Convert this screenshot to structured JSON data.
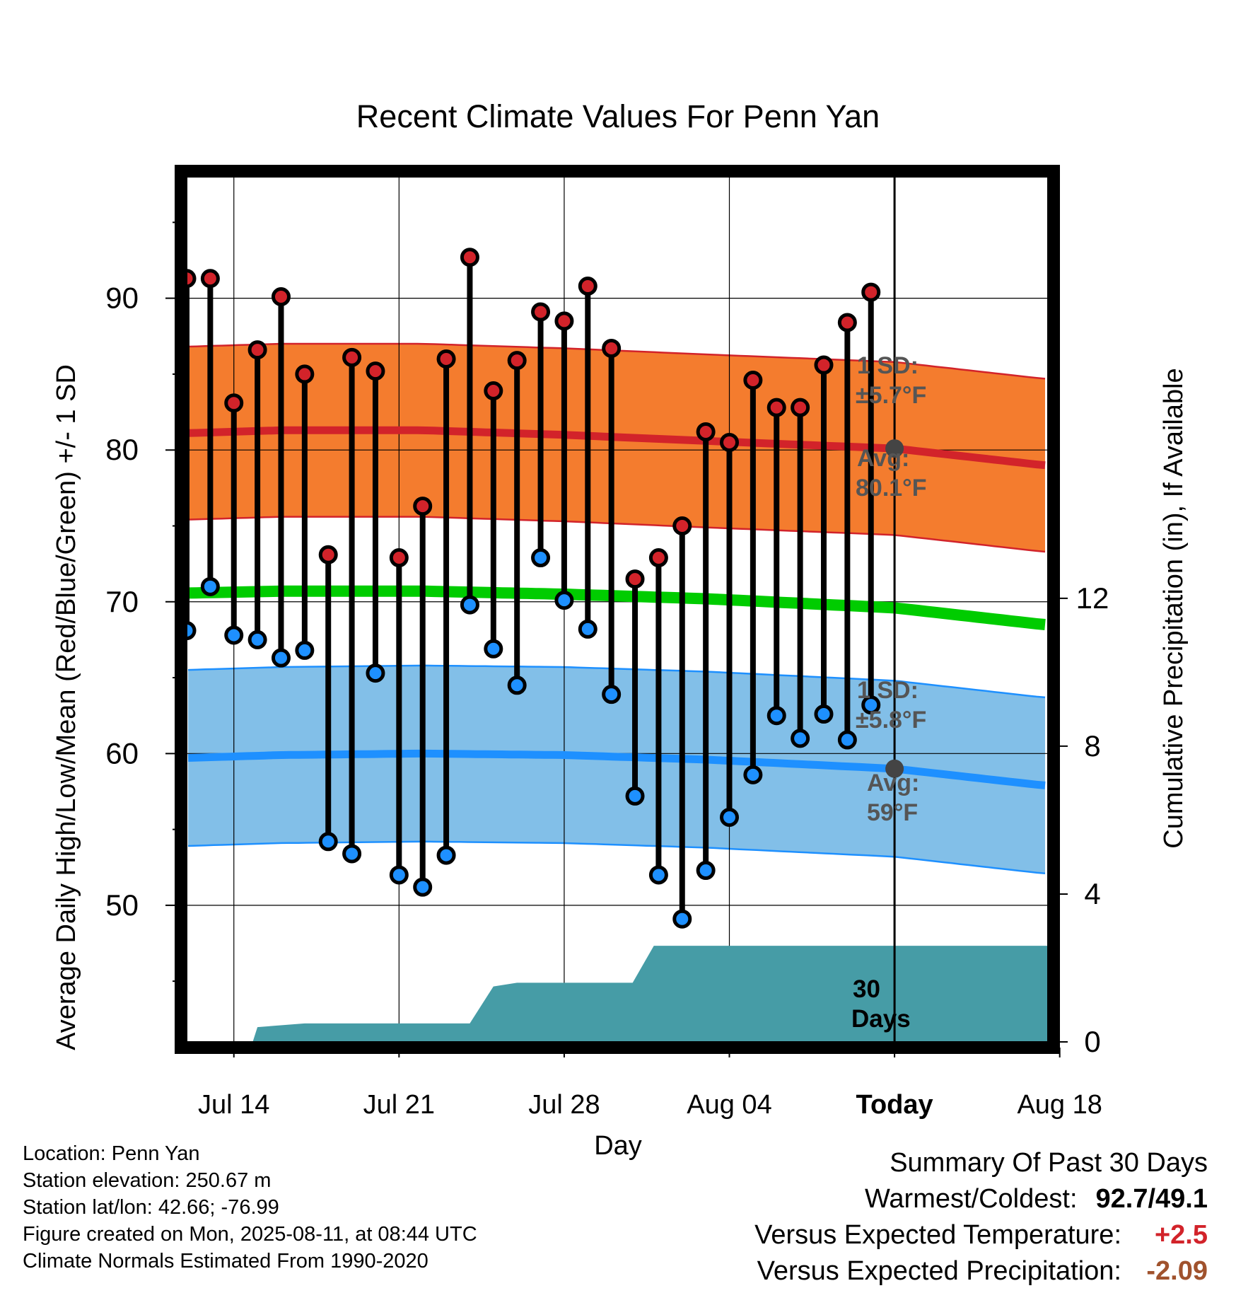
{
  "chart_data": {
    "type": "line",
    "title": "Recent Climate Values For Penn Yan",
    "xlabel": "Day",
    "ylabel": "Average Daily High/Low/Mean (Red/Blue/Green) +/- 1 SD",
    "y2label": "Cumulative Precipitation (in), If Available",
    "x_domain": [
      -12,
      24.5
    ],
    "ylim": [
      41,
      98
    ],
    "y2lim": [
      0,
      23.4
    ],
    "x_ticks": [
      {
        "x": -10,
        "label": "Jul 14"
      },
      {
        "x": -3,
        "label": "Jul 21"
      },
      {
        "x": 4,
        "label": "Jul 28"
      },
      {
        "x": 11,
        "label": "Aug 04"
      },
      {
        "x": 18,
        "label": "Today"
      },
      {
        "x": 25,
        "label": "Aug 18"
      }
    ],
    "y_ticks": [
      50,
      60,
      70,
      80,
      90
    ],
    "y2_ticks": [
      0,
      4,
      8,
      12
    ],
    "grid": true,
    "today_x": 18,
    "series": [
      {
        "name": "High",
        "color": "#d2232a",
        "x": [
          -12,
          -11,
          -10,
          -9,
          -8,
          -7,
          -6,
          -5,
          -4,
          -3,
          -2,
          -1,
          0,
          1,
          2,
          3,
          4,
          5,
          6,
          7,
          8,
          9,
          10,
          11,
          12,
          13,
          14,
          15,
          16,
          17
        ],
        "values": [
          91.3,
          91.3,
          83.1,
          86.6,
          90.1,
          85.0,
          73.1,
          86.1,
          85.2,
          72.9,
          76.3,
          86.0,
          92.7,
          83.9,
          85.9,
          89.1,
          88.5,
          90.8,
          86.7,
          71.5,
          72.9,
          75.0,
          81.2,
          80.5,
          84.6,
          82.8,
          82.8,
          85.6,
          88.4,
          90.4
        ]
      },
      {
        "name": "Low",
        "color": "#1e90ff",
        "x": [
          -12,
          -11,
          -10,
          -9,
          -8,
          -7,
          -6,
          -5,
          -4,
          -3,
          -2,
          -1,
          0,
          1,
          2,
          3,
          4,
          5,
          6,
          7,
          8,
          9,
          10,
          11,
          12,
          13,
          14,
          15,
          16,
          17
        ],
        "values": [
          68.1,
          71.0,
          67.8,
          67.5,
          66.3,
          66.8,
          54.2,
          53.4,
          65.3,
          52.0,
          51.2,
          53.3,
          69.8,
          66.9,
          64.5,
          72.9,
          70.1,
          68.2,
          63.9,
          57.2,
          52.0,
          49.1,
          52.3,
          55.8,
          58.6,
          62.5,
          61.0,
          62.6,
          60.9,
          63.2
        ]
      }
    ],
    "normals": {
      "high_avg": {
        "x": [
          -14.3,
          -8,
          -2,
          4,
          10,
          18,
          24.3
        ],
        "values": [
          81.0,
          81.3,
          81.3,
          81.0,
          80.6,
          80.1,
          79.0
        ]
      },
      "high_sd": 5.7,
      "low_avg": {
        "x": [
          -14.3,
          -8,
          -2,
          4,
          10,
          18,
          24.3
        ],
        "values": [
          59.6,
          59.9,
          60.0,
          59.9,
          59.6,
          59.0,
          57.9
        ]
      },
      "low_sd": 5.8,
      "mean_avg": {
        "x": [
          -14.3,
          -8,
          -2,
          4,
          10,
          18,
          24.3
        ],
        "values": [
          70.5,
          70.7,
          70.7,
          70.5,
          70.2,
          69.6,
          68.5
        ]
      }
    },
    "precip": {
      "x": [
        -12,
        -9.2,
        -9,
        -7,
        0,
        1,
        2,
        6.9,
        7.8,
        18,
        24.5
      ],
      "values": [
        0,
        0,
        0.4,
        0.5,
        0.5,
        1.5,
        1.6,
        1.6,
        2.6,
        2.6,
        2.6
      ]
    },
    "annotations": {
      "high_sd_label": "1 SD:",
      "high_sd_value": "±5.7°F",
      "high_avg_label": "Avg:",
      "high_avg_value": "80.1°F",
      "low_sd_label": "1 SD:",
      "low_sd_value": "±5.8°F",
      "low_avg_label": "Avg:",
      "low_avg_value": "59°F",
      "days_line1": "30",
      "days_line2": "Days"
    },
    "colors": {
      "high_band": "#f47c2e",
      "high_avg": "#d2232a",
      "low_band": "#82bfe8",
      "low_avg": "#1e90ff",
      "mean": "#00cc00",
      "precip": "#469ca6",
      "annotation": "#555555",
      "today_marker": "#444444"
    }
  },
  "meta": {
    "location": "Location: Penn Yan",
    "elevation": "Station elevation: 250.67 m",
    "latlon": "Station lat/lon: 42.66; -76.99",
    "created": "Figure created on Mon, 2025-08-11, at 08:44 UTC",
    "normals": "Climate Normals Estimated From 1990-2020"
  },
  "summary": {
    "heading": "Summary Of Past 30 Days",
    "warmest_label": "Warmest/Coldest:",
    "warmest_value": "92.7/49.1",
    "temp_label": "Versus Expected Temperature:",
    "temp_value": "+2.5",
    "temp_color": "#d2232a",
    "precip_label": "Versus Expected Precipitation:",
    "precip_value": "-2.09",
    "precip_color": "#a0522d"
  }
}
